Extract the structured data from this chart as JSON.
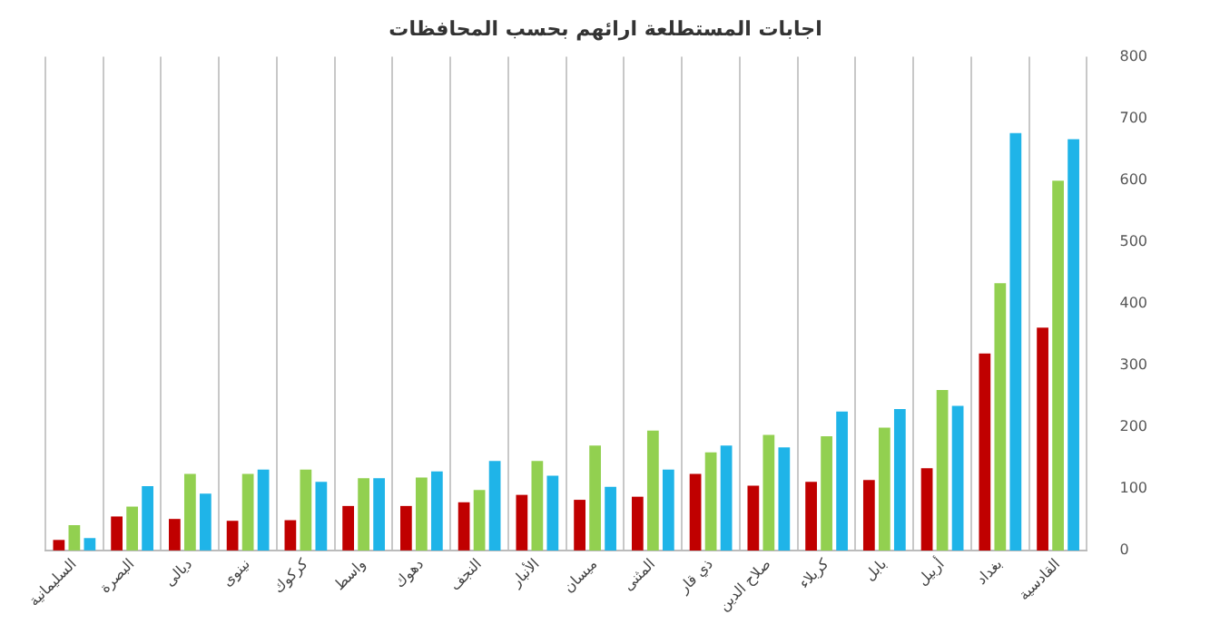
{
  "chart_data": {
    "type": "bar",
    "title": "اجابات المستطلعة ارائهم بحسب المحافظات",
    "categories": [
      "السليمانية",
      "البصرة",
      "ديالى",
      "نينوى",
      "كركوك",
      "واسط",
      "دهوك",
      "النجف",
      "الأنبار",
      "ميسان",
      "المثنى",
      "ذي قار",
      "صلاح الدين",
      "كربلاء",
      "بابل",
      "أربيل",
      "بغداد",
      "القادسية"
    ],
    "series": [
      {
        "color": "#c00000",
        "values": [
          17,
          55,
          51,
          48,
          49,
          72,
          72,
          78,
          90,
          82,
          87,
          124,
          105,
          111,
          114,
          133,
          319,
          361
        ]
      },
      {
        "color": "#92d050",
        "values": [
          41,
          71,
          124,
          124,
          131,
          117,
          118,
          98,
          145,
          170,
          194,
          159,
          187,
          185,
          199,
          260,
          433,
          599
        ]
      },
      {
        "color": "#1fb4e8",
        "values": [
          20,
          104,
          92,
          131,
          111,
          117,
          128,
          145,
          121,
          103,
          131,
          170,
          167,
          225,
          229,
          234,
          676,
          666
        ]
      }
    ],
    "ylim": [
      0,
      800
    ],
    "yticks": [
      0,
      100,
      200,
      300,
      400,
      500,
      600,
      700,
      800
    ],
    "grid": "x",
    "legend": false
  }
}
